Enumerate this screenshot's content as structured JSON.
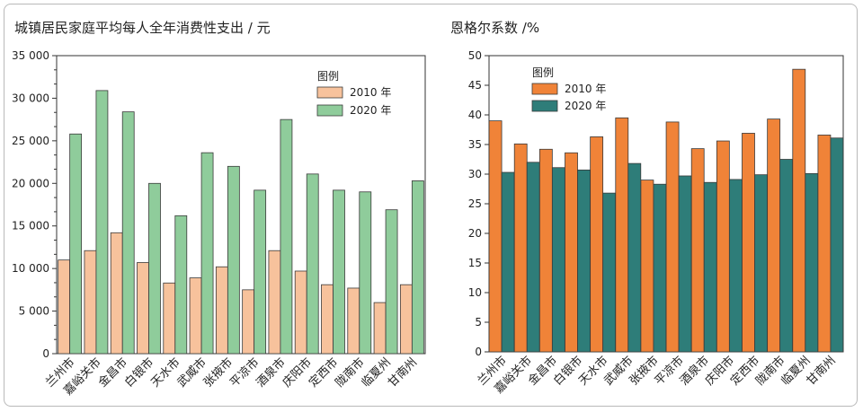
{
  "chart_data": [
    {
      "type": "bar",
      "title": "城镇居民家庭平均每人全年消费性支出 / 元",
      "categories": [
        "兰州市",
        "嘉峪关市",
        "金昌市",
        "白银市",
        "天水市",
        "武威市",
        "张掖市",
        "平凉市",
        "酒泉市",
        "庆阳市",
        "定西市",
        "陇南市",
        "临夏州",
        "甘南州"
      ],
      "series": [
        {
          "name": "2010 年",
          "color": "#f7c29c",
          "values": [
            11000,
            12100,
            14200,
            10700,
            8300,
            8900,
            10200,
            7500,
            12100,
            9700,
            8100,
            7700,
            6000,
            8100
          ]
        },
        {
          "name": "2020 年",
          "color": "#8fcc9b",
          "values": [
            25800,
            30900,
            28400,
            20000,
            16200,
            23600,
            22000,
            19200,
            27500,
            21100,
            19200,
            19000,
            16900,
            20300
          ]
        }
      ],
      "ylim": [
        0,
        35000
      ],
      "yticks": [
        0,
        5000,
        10000,
        15000,
        20000,
        25000,
        30000,
        35000
      ],
      "ytick_labels": [
        "0",
        "5 000",
        "10 000",
        "15 000",
        "20 000",
        "25 000",
        "30 000",
        "35 000"
      ],
      "legend_title": "图例",
      "legend_position": "top-right",
      "grid": false
    },
    {
      "type": "bar",
      "title": "恩格尔系数 /%",
      "categories": [
        "兰州市",
        "嘉峪关市",
        "金昌市",
        "白银市",
        "天水市",
        "武威市",
        "张掖市",
        "平凉市",
        "酒泉市",
        "庆阳市",
        "定西市",
        "陇南市",
        "临夏州",
        "甘南州"
      ],
      "series": [
        {
          "name": "2010 年",
          "color": "#f08338",
          "values": [
            39.0,
            35.1,
            34.2,
            33.6,
            36.3,
            39.5,
            29.0,
            38.8,
            34.3,
            35.6,
            36.9,
            39.3,
            47.7,
            36.6
          ]
        },
        {
          "name": "2020 年",
          "color": "#2e7d79",
          "values": [
            30.3,
            32.0,
            31.1,
            30.7,
            26.8,
            31.8,
            28.3,
            29.7,
            28.6,
            29.1,
            29.9,
            32.5,
            30.1,
            36.1
          ]
        }
      ],
      "ylim": [
        0,
        50
      ],
      "yticks": [
        0,
        5,
        10,
        15,
        20,
        25,
        30,
        35,
        40,
        45,
        50
      ],
      "ytick_labels": [
        "0",
        "5",
        "10",
        "15",
        "20",
        "25",
        "30",
        "35",
        "40",
        "45",
        "50"
      ],
      "legend_title": "图例",
      "legend_position": "top-left",
      "grid": false
    }
  ]
}
